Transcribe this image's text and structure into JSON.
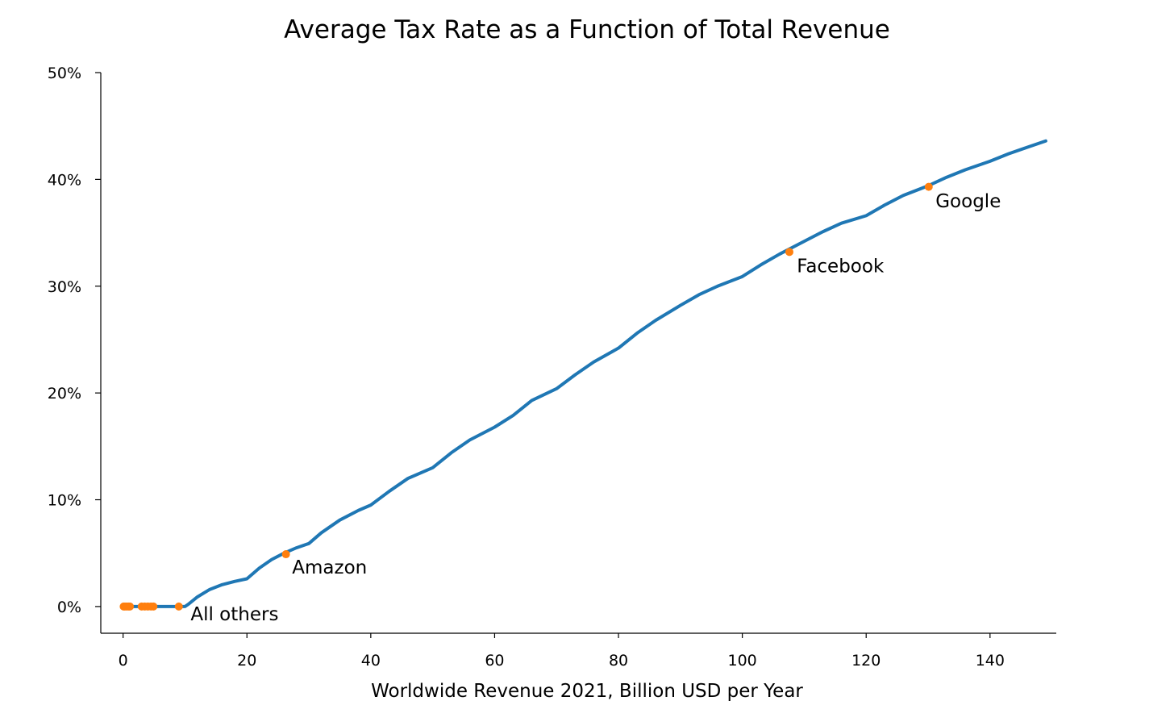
{
  "chart_data": {
    "type": "line",
    "title": "Average Tax Rate as a Function of Total Revenue",
    "xlabel": "Worldwide Revenue 2021, Billion USD per Year",
    "ylabel": "",
    "xlim": [
      -3.6,
      150.7
    ],
    "ylim": [
      -2.5,
      50
    ],
    "xticks": [
      0,
      20,
      40,
      60,
      80,
      100,
      120,
      140
    ],
    "xtick_labels": [
      "0",
      "20",
      "40",
      "60",
      "80",
      "100",
      "120",
      "140"
    ],
    "yticks": [
      0,
      10,
      20,
      30,
      40,
      50
    ],
    "ytick_labels": [
      "0%",
      "10%",
      "20%",
      "30%",
      "40%",
      "50%"
    ],
    "grid": false,
    "series": [
      {
        "kind": "line",
        "color": "#1f77b4",
        "x": [
          0,
          2,
          4,
          6,
          8,
          10,
          10.5,
          12,
          14,
          16,
          18,
          20,
          22,
          24,
          26,
          28,
          30,
          32,
          35,
          38,
          40,
          43,
          46,
          50,
          53,
          56,
          60,
          63,
          66,
          70,
          73,
          76,
          80,
          83,
          86,
          90,
          93,
          96,
          100,
          103,
          106,
          110,
          113,
          116,
          120,
          123,
          126,
          130,
          133,
          136,
          140,
          143,
          146,
          149
        ],
        "y": [
          0,
          0,
          0,
          0,
          0,
          0,
          0.2,
          0.9,
          1.6,
          2.05,
          2.35,
          2.6,
          3.6,
          4.4,
          5.0,
          5.5,
          5.9,
          6.9,
          8.1,
          9.0,
          9.5,
          10.8,
          12.0,
          13.0,
          14.4,
          15.6,
          16.8,
          17.9,
          19.3,
          20.4,
          21.7,
          22.9,
          24.2,
          25.6,
          26.8,
          28.2,
          29.2,
          30.0,
          30.9,
          32.0,
          33.0,
          34.2,
          35.1,
          35.9,
          36.6,
          37.6,
          38.5,
          39.4,
          40.2,
          40.9,
          41.7,
          42.4,
          43.0,
          43.6
        ]
      },
      {
        "kind": "scatter",
        "color": "#ff7f0e",
        "x": [
          0.1,
          0.3,
          0.6,
          0.9,
          1.1,
          3.0,
          3.5,
          4.0,
          4.5,
          4.9,
          9.0,
          26.3,
          107.6,
          130.1
        ],
        "y": [
          0,
          0,
          0,
          0,
          0,
          0,
          0,
          0,
          0,
          0,
          0,
          4.9,
          33.2,
          39.3
        ]
      }
    ],
    "annotations": [
      {
        "text": "All others",
        "x": 10.9,
        "y": -1.3
      },
      {
        "text": "Amazon",
        "x": 27.3,
        "y": 3.1
      },
      {
        "text": "Facebook",
        "x": 108.8,
        "y": 31.3
      },
      {
        "text": "Google",
        "x": 131.2,
        "y": 37.4
      }
    ]
  }
}
